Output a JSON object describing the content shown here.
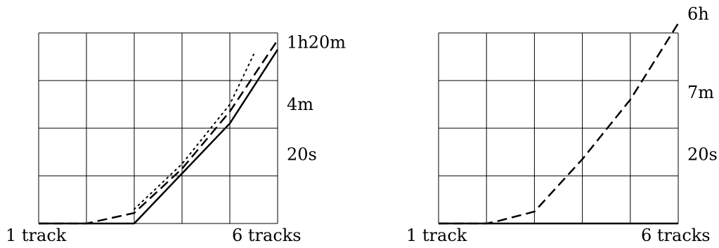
{
  "chart_data": [
    {
      "type": "line",
      "x_start_label": "1 track",
      "x_end_label": "6 tracks",
      "xlim": [
        1,
        6
      ],
      "ylim": [
        0,
        4
      ],
      "gridlines": "on",
      "right_tick_labels": [
        {
          "text": "1h20m",
          "y": 3.8
        },
        {
          "text": "4m",
          "y": 2.5
        },
        {
          "text": "20s",
          "y": 1.45
        }
      ],
      "series": [
        {
          "style": "solid",
          "x": [
            1,
            2,
            3,
            4,
            5,
            6
          ],
          "y": [
            0,
            0,
            0,
            1.05,
            2.1,
            3.65
          ]
        },
        {
          "style": "dashed",
          "x": [
            1,
            2,
            3,
            4,
            5,
            6
          ],
          "y": [
            0,
            0,
            0.22,
            1.15,
            2.35,
            3.85
          ]
        },
        {
          "style": "dotted",
          "x": [
            3,
            4,
            5,
            5.5
          ],
          "y": [
            0.3,
            1.25,
            2.5,
            3.55
          ]
        }
      ]
    },
    {
      "type": "line",
      "x_start_label": "1 track",
      "x_end_label": "6 tracks",
      "xlim": [
        1,
        6
      ],
      "ylim": [
        0,
        4
      ],
      "gridlines": "on",
      "right_tick_labels": [
        {
          "text": "6h",
          "y": 4.4
        },
        {
          "text": "7m",
          "y": 2.75
        },
        {
          "text": "20s",
          "y": 1.45
        }
      ],
      "series": [
        {
          "style": "dashed",
          "x": [
            1,
            2,
            2.2,
            3,
            4,
            5,
            6
          ],
          "y": [
            0,
            0,
            0.04,
            0.25,
            1.35,
            2.6,
            4.2
          ]
        },
        {
          "style": "solid",
          "x": [
            1,
            6
          ],
          "y": [
            0,
            0
          ]
        }
      ]
    }
  ]
}
